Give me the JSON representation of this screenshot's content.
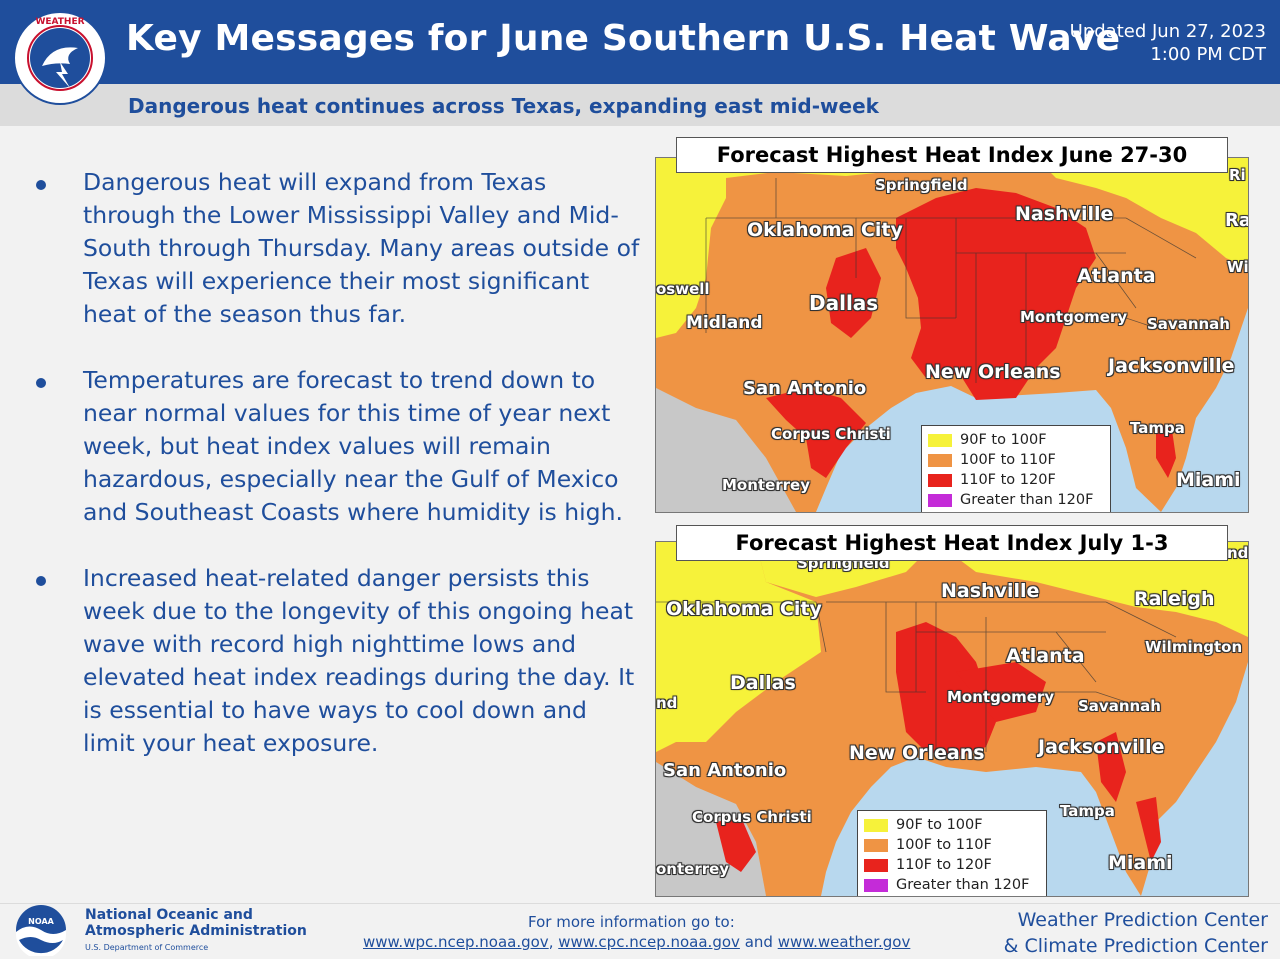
{
  "header": {
    "title": "Key Messages for June Southern U.S. Heat Wave",
    "updated_line1": "Updated Jun 27, 2023",
    "updated_line2": "1:00 PM CDT",
    "logo_text": "NATIONAL WEATHER SERVICE"
  },
  "subtitle": "Dangerous heat continues across Texas, expanding east mid-week",
  "bullets": [
    "Dangerous heat will expand from Texas through the Lower Mississippi Valley and Mid-South through Thursday. Many areas outside of Texas will experience their most significant heat of the season thus far.",
    "Temperatures are forecast to trend down to near normal values for this time of year next week, but heat index values will remain hazardous, especially near the Gulf of Mexico and Southeast Coasts where humidity is high.",
    "Increased heat-related danger persists this week due to the longevity of this ongoing heat wave with record high nighttime lows and elevated heat index readings during the day. It is essential to have ways to cool down and limit your heat exposure."
  ],
  "colors": {
    "brand_blue": "#1f4e9c",
    "heat_90_100": "#f6f23a",
    "heat_100_110": "#ef9444",
    "heat_110_120": "#e8231d",
    "heat_over_120": "#c42bd8",
    "water": "#b8d8ee",
    "land_outside": "#c8c8c8"
  },
  "map1": {
    "title": "Forecast Highest Heat Index June 27-30",
    "cities": [
      "Springfield",
      "Nashville",
      "Oklahoma City",
      "Rale",
      "Wiln",
      "Ri",
      "oswell",
      "Dallas",
      "Atlanta",
      "Midland",
      "Montgomery",
      "Savannah",
      "New Orleans",
      "Jacksonville",
      "San Antonio",
      "Corpus Christi",
      "Tampa",
      "Monterrey",
      "Miami"
    ],
    "legend": [
      "90F to 100F",
      "100F to 110F",
      "110F to 120F",
      "Greater than 120F"
    ]
  },
  "map2": {
    "title": "Forecast Highest Heat Index July 1-3",
    "cities": [
      "Springfield",
      "nd",
      "Nashville",
      "Oklahoma City",
      "Raleigh",
      "Wilmington",
      "Atlanta",
      "Dallas",
      "Montgomery",
      "Savannah",
      "nd",
      "New Orleans",
      "Jacksonville",
      "San Antonio",
      "Corpus Christi",
      "Tampa",
      "Miami",
      "onterrey"
    ],
    "legend": [
      "90F to 100F",
      "100F to 110F",
      "110F to 120F",
      "Greater than 120F"
    ]
  },
  "footer": {
    "noaa_logo_text": "NOAA",
    "noaa_line1": "National Oceanic and",
    "noaa_line2": "Atmospheric Administration",
    "noaa_dept": "U.S. Department of Commerce",
    "info_label": "For more information go to:",
    "link1": "www.wpc.ncep.noaa.gov",
    "link2": "www.cpc.ncep.noaa.gov",
    "link_and": "and",
    "link3": "www.weather.gov",
    "center1": "Weather Prediction Center",
    "center2": "& Climate Prediction Center"
  }
}
